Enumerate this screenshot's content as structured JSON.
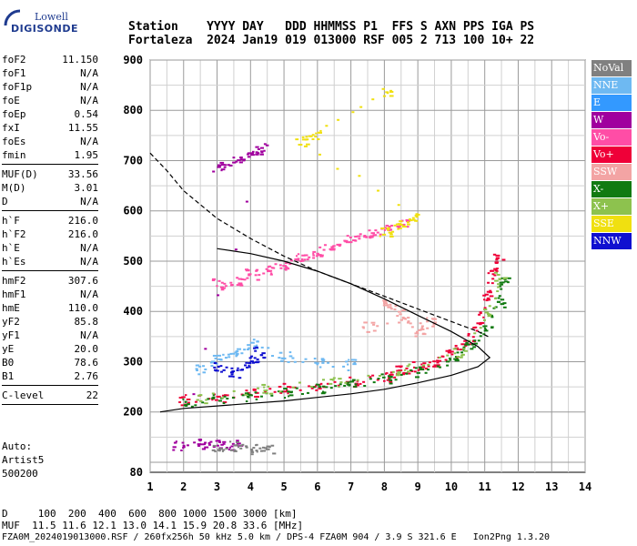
{
  "logo": {
    "line1": "Lowell",
    "line2": "DIGISONDE"
  },
  "header": {
    "line1": "Station    YYYY DAY   DDD HHMMSS P1  FFS S AXN PPS IGA PS",
    "line2": "Fortaleza  2024 Jan19 019 013000 RSF 005 2 713 100 10+ 22"
  },
  "params_group1": [
    {
      "k": "foF2",
      "v": "11.150"
    },
    {
      "k": "foF1",
      "v": "N/A"
    },
    {
      "k": "foF1p",
      "v": "N/A"
    },
    {
      "k": "foE",
      "v": "N/A"
    },
    {
      "k": "foEp",
      "v": "0.54"
    },
    {
      "k": "fxI",
      "v": "11.55"
    },
    {
      "k": "foEs",
      "v": "N/A"
    },
    {
      "k": "fmin",
      "v": "1.95"
    }
  ],
  "params_group2": [
    {
      "k": "MUF(D)",
      "v": "33.56"
    },
    {
      "k": "M(D)",
      "v": "3.01"
    },
    {
      "k": "D",
      "v": "N/A"
    }
  ],
  "params_group3": [
    {
      "k": "h`F",
      "v": "216.0"
    },
    {
      "k": "h`F2",
      "v": "216.0"
    },
    {
      "k": "h`E",
      "v": "N/A"
    },
    {
      "k": "h`Es",
      "v": "N/A"
    }
  ],
  "params_group4": [
    {
      "k": "hmF2",
      "v": "307.6"
    },
    {
      "k": "hmF1",
      "v": "N/A"
    },
    {
      "k": "hmE",
      "v": "110.0"
    },
    {
      "k": "yF2",
      "v": "85.8"
    },
    {
      "k": "yF1",
      "v": "N/A"
    },
    {
      "k": "yE",
      "v": "20.0"
    },
    {
      "k": "B0",
      "v": "78.6"
    },
    {
      "k": "B1",
      "v": "2.76"
    }
  ],
  "params_group5": [
    {
      "k": "C-level",
      "v": "22"
    }
  ],
  "auto": {
    "line1": "Auto:",
    "line2": "Artist5",
    "line3": "500200"
  },
  "legend": [
    {
      "label": "NoVal",
      "color": "#808080"
    },
    {
      "label": "NNE",
      "color": "#6eb9f2"
    },
    {
      "label": "E",
      "color": "#3399ff"
    },
    {
      "label": "W",
      "color": "#a0009e"
    },
    {
      "label": "Vo-",
      "color": "#ff4da6"
    },
    {
      "label": "Vo+",
      "color": "#ef0038"
    },
    {
      "label": "SSW",
      "color": "#f3a4a4"
    },
    {
      "label": "X-",
      "color": "#117a11"
    },
    {
      "label": "X+",
      "color": "#8dc24e"
    },
    {
      "label": "SSE",
      "color": "#f0e010"
    },
    {
      "label": "NNW",
      "color": "#1010d0"
    }
  ],
  "footer": {
    "line1": "D     100  200  400  600  800 1000 1500 3000 [km]",
    "line2": "MUF  11.5 11.6 12.1 13.0 14.1 15.9 20.8 33.6 [MHz]",
    "line3": "FZA0M_2024019013000.RSF / 260fx256h 50 kHz 5.0 km / DPS-4 FZA0M 904 / 3.9 S 321.6 E   Ion2Png 1.3.20"
  },
  "chart_data": {
    "type": "scatter",
    "xlim": [
      1,
      14
    ],
    "ylim": [
      80,
      900
    ],
    "xticks": [
      1,
      2,
      3,
      4,
      5,
      6,
      7,
      8,
      9,
      10,
      11,
      12,
      13,
      14
    ],
    "yticks": [
      80,
      200,
      300,
      400,
      500,
      600,
      700,
      800,
      900
    ],
    "grid": true,
    "series": [
      {
        "color": "#ef0038",
        "points": [
          [
            2.0,
            225
          ],
          [
            3.0,
            232
          ],
          [
            4.0,
            240
          ],
          [
            5.0,
            247
          ],
          [
            6.0,
            255
          ],
          [
            7.0,
            262
          ],
          [
            8.0,
            272
          ],
          [
            8.5,
            282
          ],
          [
            9.0,
            290
          ],
          [
            9.5,
            300
          ],
          [
            10.0,
            318
          ],
          [
            10.5,
            345
          ],
          [
            10.8,
            380
          ],
          [
            11.0,
            430
          ],
          [
            11.2,
            480
          ],
          [
            11.35,
            505
          ]
        ]
      },
      {
        "color": "#117a11",
        "points": [
          [
            2.0,
            218
          ],
          [
            3.0,
            226
          ],
          [
            4.0,
            233
          ],
          [
            5.0,
            240
          ],
          [
            6.0,
            248
          ],
          [
            7.0,
            258
          ],
          [
            8.0,
            266
          ],
          [
            9.0,
            282
          ],
          [
            10.0,
            305
          ],
          [
            10.5,
            330
          ],
          [
            11.0,
            370
          ],
          [
            11.4,
            420
          ],
          [
            11.5,
            460
          ]
        ]
      },
      {
        "color": "#8dc24e",
        "points": [
          [
            2.5,
            230
          ],
          [
            4.5,
            245
          ],
          [
            6.5,
            262
          ],
          [
            8.5,
            285
          ],
          [
            10.2,
            320
          ],
          [
            11.1,
            400
          ],
          [
            11.45,
            470
          ]
        ]
      },
      {
        "color": "#6eb9f2",
        "points": [
          [
            2.5,
            285
          ],
          [
            3.0,
            305
          ],
          [
            3.5,
            320
          ],
          [
            4.0,
            335
          ],
          [
            5.0,
            310
          ],
          [
            6.0,
            300
          ],
          [
            7.0,
            295
          ]
        ]
      },
      {
        "color": "#1010d0",
        "points": [
          [
            3.0,
            290
          ],
          [
            3.5,
            280
          ],
          [
            4.0,
            300
          ],
          [
            4.2,
            320
          ]
        ]
      },
      {
        "color": "#ff4da6",
        "points": [
          [
            3.0,
            455
          ],
          [
            3.5,
            462
          ],
          [
            4.0,
            475
          ],
          [
            4.5,
            485
          ],
          [
            5.0,
            495
          ],
          [
            5.5,
            505
          ],
          [
            6.0,
            520
          ],
          [
            6.5,
            535
          ],
          [
            7.0,
            545
          ],
          [
            7.5,
            555
          ],
          [
            8.0,
            565
          ],
          [
            8.5,
            580
          ]
        ]
      },
      {
        "color": "#f0e010",
        "points": [
          [
            8.0,
            560
          ],
          [
            8.5,
            575
          ],
          [
            8.9,
            590
          ],
          [
            5.5,
            740
          ],
          [
            5.9,
            750
          ],
          [
            8.0,
            840
          ]
        ]
      },
      {
        "color": "#a0009e",
        "points": [
          [
            3.0,
            690
          ],
          [
            3.5,
            700
          ],
          [
            4.0,
            715
          ],
          [
            4.3,
            725
          ],
          [
            1.8,
            133
          ],
          [
            2.5,
            136
          ],
          [
            3.0,
            138
          ],
          [
            3.5,
            134
          ]
        ]
      },
      {
        "color": "#f3a4a4",
        "points": [
          [
            8.0,
            420
          ],
          [
            8.5,
            395
          ],
          [
            9.0,
            360
          ],
          [
            9.3,
            380
          ],
          [
            7.5,
            370
          ]
        ]
      },
      {
        "color": "#808080",
        "points": [
          [
            3.0,
            130
          ],
          [
            3.5,
            132
          ],
          [
            4.0,
            128
          ],
          [
            4.5,
            130
          ]
        ]
      }
    ],
    "curves": [
      {
        "name": "solid",
        "points": [
          [
            1.3,
            200
          ],
          [
            2,
            207
          ],
          [
            3,
            212
          ],
          [
            4,
            217
          ],
          [
            5,
            222
          ],
          [
            6,
            229
          ],
          [
            7,
            236
          ],
          [
            8,
            245
          ],
          [
            9,
            258
          ],
          [
            10,
            273
          ],
          [
            10.8,
            290
          ],
          [
            11.15,
            308
          ],
          [
            10.8,
            330
          ],
          [
            10,
            360
          ],
          [
            9,
            392
          ],
          [
            8,
            425
          ],
          [
            7,
            455
          ],
          [
            6,
            480
          ],
          [
            5,
            500
          ],
          [
            4,
            515
          ],
          [
            3,
            525
          ]
        ]
      },
      {
        "name": "dashed",
        "points": [
          [
            1,
            715
          ],
          [
            1.5,
            680
          ],
          [
            2,
            640
          ],
          [
            3,
            585
          ],
          [
            4,
            545
          ],
          [
            5,
            510
          ],
          [
            6,
            480
          ],
          [
            7,
            455
          ],
          [
            8,
            430
          ],
          [
            9,
            405
          ],
          [
            10,
            380
          ],
          [
            10.8,
            360
          ],
          [
            11.1,
            350
          ]
        ]
      }
    ]
  }
}
